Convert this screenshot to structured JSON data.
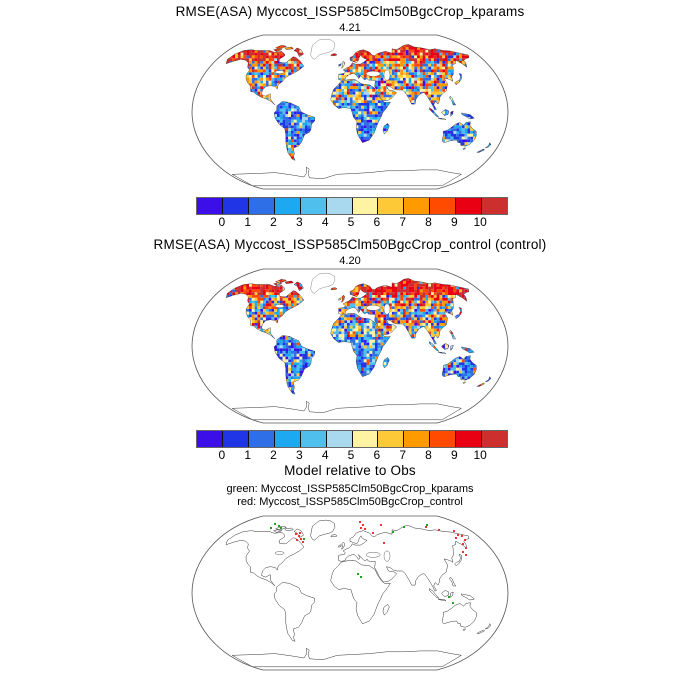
{
  "figure": {
    "panels": [
      {
        "title": "RMSE(ASA) Myccost_ISSP585Clm50BgcCrop_kparams",
        "stat": "4.21"
      },
      {
        "title": "RMSE(ASA) Myccost_ISSP585Clm50BgcCrop_control (control)",
        "stat": "4.20"
      },
      {
        "title": "Model relative to Obs",
        "legend_green": "green: Myccost_ISSP585Clm50BgcCrop_kparams",
        "legend_red": "red: Myccost_ISSP585Clm50BgcCrop_control"
      }
    ]
  },
  "chart_data": [
    {
      "type": "heatmap",
      "subtype": "global-map-robinson",
      "title": "RMSE(ASA) Myccost_ISSP585Clm50BgcCrop_kparams",
      "global_mean_rmse": 4.21,
      "colorbar": {
        "ticks": [
          0,
          1,
          2,
          3,
          4,
          5,
          6,
          7,
          8,
          9,
          10
        ],
        "colors": [
          "#3d0fe8",
          "#1f35e6",
          "#2e6ee6",
          "#1da9f2",
          "#4fbfee",
          "#a9d9ee",
          "#fdf3a3",
          "#fdc937",
          "#ff9a00",
          "#ff4b00",
          "#ea0013",
          "#cd2e2e"
        ]
      },
      "pattern": "high RMSE (red, >8) across Arctic/boreal latitudes; mixed yellow-orange over mid-latitudes and Sahara; low RMSE (blue, <4) over tropics and southern continents; Greenland and Antarctica masked white"
    },
    {
      "type": "heatmap",
      "subtype": "global-map-robinson",
      "title": "RMSE(ASA) Myccost_ISSP585Clm50BgcCrop_control (control)",
      "global_mean_rmse": 4.2,
      "colorbar": {
        "ticks": [
          0,
          1,
          2,
          3,
          4,
          5,
          6,
          7,
          8,
          9,
          10
        ],
        "colors": [
          "#3d0fe8",
          "#1f35e6",
          "#2e6ee6",
          "#1da9f2",
          "#4fbfee",
          "#a9d9ee",
          "#fdf3a3",
          "#fdc937",
          "#ff9a00",
          "#ff4b00",
          "#ea0013",
          "#cd2e2e"
        ]
      },
      "pattern": "same spatial structure as kparams run: red Arctic band, mixed mid-latitudes, blue tropics"
    },
    {
      "type": "scatter",
      "subtype": "global-map-points",
      "title": "Model relative to Obs",
      "series": [
        {
          "name": "green: Myccost_ISSP585Clm50BgcCrop_kparams",
          "color": "#21a121",
          "points": [
            [
              84,
              12
            ],
            [
              88,
              14
            ],
            [
              90,
              16
            ],
            [
              80,
              16
            ],
            [
              113,
              27
            ],
            [
              236,
              13
            ],
            [
              213,
              15
            ],
            [
              202,
              20
            ],
            [
              167,
              62
            ],
            [
              170,
              65
            ],
            [
              258,
              85
            ],
            [
              262,
              91
            ]
          ]
        },
        {
          "name": "red: Myccost_ISSP585Clm50BgcCrop_control",
          "color": "#ee3333",
          "points": [
            [
              105,
              22
            ],
            [
              108,
              24
            ],
            [
              110,
              27
            ],
            [
              106,
              28
            ],
            [
              112,
              30
            ],
            [
              109,
              21
            ],
            [
              169,
              10
            ],
            [
              172,
              13
            ],
            [
              170,
              16
            ],
            [
              174,
              17
            ],
            [
              182,
              21
            ],
            [
              190,
              13
            ],
            [
              193,
              31
            ],
            [
              235,
              15
            ],
            [
              248,
              18
            ],
            [
              263,
              19
            ],
            [
              267,
              23
            ],
            [
              265,
              26
            ],
            [
              271,
              24
            ],
            [
              274,
              28
            ],
            [
              272,
              32
            ],
            [
              275,
              36
            ],
            [
              272,
              40
            ],
            [
              275,
              43
            ]
          ]
        }
      ],
      "note": "point coordinates in map-local pixels (318x162 Robinson frame)"
    }
  ]
}
